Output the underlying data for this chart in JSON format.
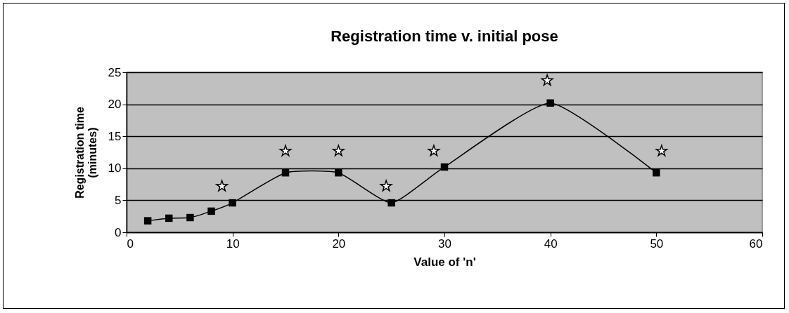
{
  "chart_data": {
    "type": "line",
    "title": "Registration time v. initial pose",
    "xlabel": "Value of 'n'",
    "ylabel": "Registration time\n(minutes)",
    "xlim": [
      0,
      60
    ],
    "xticks": [
      0,
      10,
      20,
      30,
      40,
      50,
      60
    ],
    "ylim": [
      0,
      25
    ],
    "yticks": [
      0,
      5,
      10,
      15,
      20,
      25
    ],
    "grid": "y",
    "series": [
      {
        "color": "#000000",
        "marker": "square",
        "line_style": "solid",
        "x": [
          2,
          4,
          6,
          8,
          10,
          15,
          20,
          25,
          30,
          40,
          50
        ],
        "values": [
          1.8,
          2.2,
          2.3,
          3.3,
          4.6,
          9.3,
          9.3,
          4.6,
          10.2,
          20.2,
          9.3
        ]
      },
      {
        "type": "scatter",
        "color": "#ffffff",
        "marker": "star",
        "x": [
          9,
          15,
          20,
          24.5,
          29,
          39.7,
          50.5
        ],
        "values": [
          7.2,
          12.7,
          12.7,
          7.2,
          12.7,
          23.7,
          12.7
        ]
      }
    ]
  }
}
